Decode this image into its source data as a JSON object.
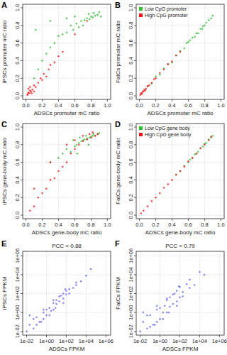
{
  "chart_data": [
    {
      "type": "scatter",
      "title": "A",
      "x_label": "ADSCs promoter mC ratio",
      "y_label": "iPSCs promoter mC ratio",
      "xlim": [
        -0.04,
        1.04
      ],
      "ylim": [
        -0.04,
        1.04
      ],
      "xticks": [
        {
          "value": 0,
          "label": "0.0"
        },
        {
          "value": 0.2,
          "label": "0.2"
        },
        {
          "value": 0.4,
          "label": "0.4"
        },
        {
          "value": 0.6,
          "label": "0.6"
        },
        {
          "value": 0.8,
          "label": "0.8"
        },
        {
          "value": 1,
          "label": "1.0"
        }
      ],
      "yticks": [
        {
          "value": 0,
          "label": "0.0"
        },
        {
          "value": 0.2,
          "label": "0.2"
        },
        {
          "value": 0.4,
          "label": "0.4"
        },
        {
          "value": 0.6,
          "label": "0.6"
        },
        {
          "value": 0.8,
          "label": "0.8"
        },
        {
          "value": 1,
          "label": "1.0"
        }
      ],
      "grid": true,
      "series": [
        {
          "color": "#2dbb2d",
          "x": [
            0.62,
            0.68,
            0.72,
            0.75,
            0.78,
            0.8,
            0.82,
            0.85,
            0.88,
            0.7,
            0.65,
            0.58,
            0.55,
            0.5,
            0.45,
            0.4,
            0.35,
            0.3,
            0.25,
            0.2,
            0.15,
            0.1,
            0.12,
            0.3,
            0.5,
            0.6,
            0.77,
            0.83,
            0.9,
            0.92
          ],
          "values": [
            0.82,
            0.85,
            0.86,
            0.88,
            0.87,
            0.9,
            0.89,
            0.91,
            0.92,
            0.8,
            0.78,
            0.75,
            0.8,
            0.72,
            0.7,
            0.68,
            0.6,
            0.55,
            0.48,
            0.4,
            0.3,
            0.2,
            0.75,
            0.85,
            0.88,
            0.9,
            0.93,
            0.94,
            0.95,
            0.9
          ]
        },
        {
          "color": "#ee1111",
          "x": [
            0.02,
            0.03,
            0.04,
            0.05,
            0.06,
            0.03,
            0.05,
            0.08,
            0.1,
            0.12,
            0.15,
            0.18,
            0.2,
            0.22,
            0.25,
            0.28,
            0.3,
            0.35,
            0.4,
            0.45,
            0.07,
            0.1,
            0.02,
            0.6,
            0.75
          ],
          "values": [
            0.02,
            0.04,
            0.03,
            0.06,
            0.05,
            0.08,
            0.1,
            0.07,
            0.12,
            0.1,
            0.15,
            0.2,
            0.18,
            0.25,
            0.22,
            0.3,
            0.35,
            0.38,
            0.45,
            0.5,
            0.03,
            0.05,
            0.01,
            0.7,
            0.85
          ]
        }
      ]
    },
    {
      "type": "scatter",
      "title": "B",
      "x_label": "ADSCs promoter mC ratio",
      "y_label": "FatCs promoter mC ratio",
      "xlim": [
        -0.04,
        1.04
      ],
      "ylim": [
        -0.04,
        1.04
      ],
      "xticks": [
        {
          "value": 0,
          "label": "0.0"
        },
        {
          "value": 0.2,
          "label": "0.2"
        },
        {
          "value": 0.4,
          "label": "0.4"
        },
        {
          "value": 0.6,
          "label": "0.6"
        },
        {
          "value": 0.8,
          "label": "0.8"
        },
        {
          "value": 1,
          "label": "1.0"
        }
      ],
      "yticks": [
        {
          "value": 0,
          "label": "0.0"
        },
        {
          "value": 0.2,
          "label": "0.2"
        },
        {
          "value": 0.4,
          "label": "0.4"
        },
        {
          "value": 0.6,
          "label": "0.6"
        },
        {
          "value": 0.8,
          "label": "0.8"
        },
        {
          "value": 1,
          "label": "1.0"
        }
      ],
      "grid": true,
      "legend": "top-left",
      "series": [
        {
          "name": "Low CpG promoter",
          "color": "#2dbb2d",
          "x": [
            0.1,
            0.15,
            0.2,
            0.25,
            0.3,
            0.35,
            0.4,
            0.45,
            0.5,
            0.55,
            0.6,
            0.65,
            0.7,
            0.72,
            0.75,
            0.78,
            0.8,
            0.82,
            0.85,
            0.88,
            0.9,
            0.68,
            0.62,
            0.58,
            0.77
          ],
          "values": [
            0.11,
            0.14,
            0.22,
            0.24,
            0.31,
            0.36,
            0.38,
            0.46,
            0.51,
            0.54,
            0.61,
            0.66,
            0.71,
            0.71,
            0.76,
            0.79,
            0.8,
            0.83,
            0.86,
            0.88,
            0.91,
            0.67,
            0.63,
            0.6,
            0.76
          ]
        },
        {
          "name": "High CpG promoter",
          "color": "#ee1111",
          "x": [
            0.01,
            0.02,
            0.03,
            0.04,
            0.05,
            0.06,
            0.08,
            0.1,
            0.12,
            0.15,
            0.18,
            0.2,
            0.25,
            0.3,
            0.35,
            0.4,
            0.45,
            0.5,
            0.03,
            0.07
          ],
          "values": [
            0.01,
            0.03,
            0.03,
            0.05,
            0.05,
            0.07,
            0.08,
            0.11,
            0.12,
            0.15,
            0.19,
            0.2,
            0.26,
            0.3,
            0.36,
            0.39,
            0.46,
            0.5,
            0.02,
            0.06
          ]
        }
      ]
    },
    {
      "type": "scatter",
      "title": "C",
      "x_label": "ADSCs gene-body mC ratio",
      "y_label": "iPSCs gene-body mC ratio",
      "xlim": [
        -0.04,
        1.04
      ],
      "ylim": [
        -0.04,
        1.04
      ],
      "xticks": [
        {
          "value": 0,
          "label": "0.0"
        },
        {
          "value": 0.2,
          "label": "0.2"
        },
        {
          "value": 0.4,
          "label": "0.4"
        },
        {
          "value": 0.6,
          "label": "0.6"
        },
        {
          "value": 0.8,
          "label": "0.8"
        },
        {
          "value": 1,
          "label": "1.0"
        }
      ],
      "yticks": [
        {
          "value": 0,
          "label": "0.0"
        },
        {
          "value": 0.2,
          "label": "0.2"
        },
        {
          "value": 0.4,
          "label": "0.4"
        },
        {
          "value": 0.6,
          "label": "0.6"
        },
        {
          "value": 0.8,
          "label": "0.8"
        },
        {
          "value": 1,
          "label": "1.0"
        }
      ],
      "grid": true,
      "series": [
        {
          "color": "#2dbb2d",
          "x": [
            0.55,
            0.6,
            0.62,
            0.65,
            0.68,
            0.7,
            0.72,
            0.75,
            0.78,
            0.8,
            0.82,
            0.85,
            0.88,
            0.9,
            0.5,
            0.45,
            0.58,
            0.66,
            0.74,
            0.83,
            0.4,
            0.3,
            0.63,
            0.77
          ],
          "values": [
            0.72,
            0.78,
            0.8,
            0.82,
            0.84,
            0.85,
            0.86,
            0.87,
            0.88,
            0.89,
            0.9,
            0.9,
            0.92,
            0.93,
            0.75,
            0.7,
            0.85,
            0.88,
            0.9,
            0.92,
            0.65,
            0.6,
            0.7,
            0.8
          ]
        },
        {
          "color": "#ee1111",
          "x": [
            0.05,
            0.1,
            0.15,
            0.2,
            0.25,
            0.3,
            0.35,
            0.4,
            0.45,
            0.5,
            0.55,
            0.6,
            0.65,
            0.7,
            0.75,
            0.8,
            0.85,
            0.88,
            0.3,
            0.5,
            0.6,
            0.7,
            0.78,
            0.82,
            0.1
          ],
          "values": [
            0.05,
            0.1,
            0.2,
            0.25,
            0.3,
            0.4,
            0.42,
            0.5,
            0.55,
            0.6,
            0.7,
            0.75,
            0.8,
            0.84,
            0.86,
            0.88,
            0.9,
            0.92,
            0.6,
            0.8,
            0.85,
            0.9,
            0.92,
            0.94,
            0.3
          ]
        }
      ]
    },
    {
      "type": "scatter",
      "title": "D",
      "x_label": "ADSCs gene-body mC ratio",
      "y_label": "FatCs gene-body mC ratio",
      "xlim": [
        -0.04,
        1.04
      ],
      "ylim": [
        -0.04,
        1.04
      ],
      "xticks": [
        {
          "value": 0,
          "label": "0.0"
        },
        {
          "value": 0.2,
          "label": "0.2"
        },
        {
          "value": 0.4,
          "label": "0.4"
        },
        {
          "value": 0.6,
          "label": "0.6"
        },
        {
          "value": 0.8,
          "label": "0.8"
        },
        {
          "value": 1,
          "label": "1.0"
        }
      ],
      "yticks": [
        {
          "value": 0,
          "label": "0.0"
        },
        {
          "value": 0.2,
          "label": "0.2"
        },
        {
          "value": 0.4,
          "label": "0.4"
        },
        {
          "value": 0.6,
          "label": "0.6"
        },
        {
          "value": 0.8,
          "label": "0.8"
        },
        {
          "value": 1,
          "label": "1.0"
        }
      ],
      "grid": true,
      "legend": "top-left",
      "series": [
        {
          "name": "Low CpG gene body",
          "color": "#2dbb2d",
          "x": [
            0.45,
            0.5,
            0.55,
            0.6,
            0.62,
            0.65,
            0.68,
            0.7,
            0.72,
            0.75,
            0.78,
            0.8,
            0.82,
            0.85,
            0.88,
            0.9
          ],
          "values": [
            0.46,
            0.5,
            0.56,
            0.6,
            0.63,
            0.65,
            0.69,
            0.7,
            0.72,
            0.76,
            0.78,
            0.81,
            0.82,
            0.86,
            0.88,
            0.9
          ]
        },
        {
          "name": "High CpG gene body",
          "color": "#ee1111",
          "x": [
            0.02,
            0.05,
            0.1,
            0.15,
            0.2,
            0.25,
            0.3,
            0.35,
            0.4,
            0.45,
            0.5,
            0.55,
            0.6,
            0.65,
            0.7,
            0.75,
            0.8,
            0.85,
            0.88
          ],
          "values": [
            0.02,
            0.05,
            0.1,
            0.16,
            0.2,
            0.25,
            0.31,
            0.35,
            0.4,
            0.46,
            0.5,
            0.55,
            0.61,
            0.65,
            0.7,
            0.76,
            0.8,
            0.85,
            0.89
          ]
        }
      ]
    },
    {
      "type": "scatter",
      "title": "E",
      "subtitle": "PCC = 0.88",
      "x_label": "ADSCs FPKM",
      "y_label": "iPSCs FPKM",
      "log": true,
      "xlim": [
        0.004,
        3000000
      ],
      "ylim": [
        0.004,
        3000000
      ],
      "xticks": [
        {
          "value": 0.01,
          "label": "1e-02"
        },
        {
          "value": 1,
          "label": "1e+00"
        },
        {
          "value": 100,
          "label": "1e+02"
        },
        {
          "value": 10000,
          "label": "1e+04"
        },
        {
          "value": 1000000,
          "label": "1e+06"
        }
      ],
      "yticks": [
        {
          "value": 0.01,
          "label": "1e-02"
        },
        {
          "value": 1,
          "label": "1e+00"
        },
        {
          "value": 100,
          "label": "1e+02"
        },
        {
          "value": 10000,
          "label": "1e+04"
        },
        {
          "value": 1000000,
          "label": "1e+06"
        }
      ],
      "grid": true,
      "color": "#6060ee",
      "x": [
        0.01,
        0.02,
        0.05,
        0.1,
        0.1,
        0.2,
        0.5,
        0.5,
        1,
        1,
        2,
        3,
        5,
        5,
        10,
        10,
        20,
        30,
        50,
        50,
        100,
        100,
        200,
        500,
        1000,
        1000,
        3000,
        10000,
        30000,
        0.05,
        0.3,
        2,
        20,
        200,
        5,
        50,
        0.02,
        0.5,
        8,
        80
      ],
      "values": [
        0.01,
        0.05,
        0.02,
        0.3,
        0.05,
        0.1,
        1,
        0.2,
        2,
        0.5,
        3,
        1.5,
        10,
        2,
        8,
        20,
        15,
        60,
        30,
        100,
        80,
        200,
        300,
        400,
        1500,
        800,
        2000,
        8000,
        40000,
        0.2,
        0.1,
        0.5,
        50,
        100,
        20,
        10,
        0.5,
        2,
        3,
        300
      ]
    },
    {
      "type": "scatter",
      "title": "F",
      "subtitle": "PCC = 0.79",
      "x_label": "ADSCs FPKM",
      "y_label": "FatCs FPKM",
      "log": true,
      "xlim": [
        0.004,
        3000000
      ],
      "ylim": [
        0.004,
        3000000
      ],
      "xticks": [
        {
          "value": 0.01,
          "label": "1e-02"
        },
        {
          "value": 1,
          "label": "1e+00"
        },
        {
          "value": 100,
          "label": "1e+02"
        },
        {
          "value": 10000,
          "label": "1e+04"
        },
        {
          "value": 1000000,
          "label": "1e+06"
        }
      ],
      "yticks": [
        {
          "value": 0.01,
          "label": "1e-02"
        },
        {
          "value": 1,
          "label": "1e+00"
        },
        {
          "value": 100,
          "label": "1e+02"
        },
        {
          "value": 10000,
          "label": "1e+04"
        },
        {
          "value": 1000000,
          "label": "1e+06"
        }
      ],
      "grid": true,
      "color": "#6060ee",
      "x": [
        0.01,
        0.02,
        0.05,
        0.1,
        0.1,
        0.2,
        0.5,
        0.5,
        1,
        1,
        2,
        3,
        5,
        5,
        10,
        10,
        20,
        30,
        50,
        50,
        100,
        100,
        200,
        500,
        1000,
        1000,
        3000,
        10000,
        30000,
        0.05,
        0.3,
        2,
        20,
        200,
        5,
        50,
        0.02,
        0.5,
        8,
        80
      ],
      "values": [
        0.01,
        0.1,
        0.02,
        0.5,
        0.03,
        0.05,
        2,
        0.1,
        3,
        0.2,
        1,
        5,
        20,
        1,
        4,
        40,
        8,
        100,
        15,
        200,
        40,
        500,
        150,
        1000,
        3000,
        400,
        800,
        20000,
        10000,
        0.5,
        0.05,
        0.2,
        80,
        50,
        30,
        5,
        1,
        5,
        1,
        600
      ]
    }
  ]
}
